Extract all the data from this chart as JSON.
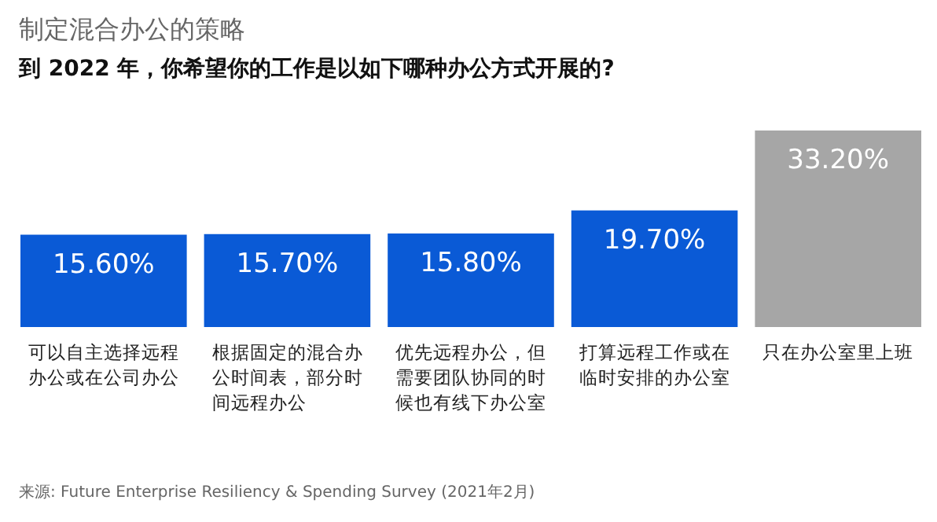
{
  "chart_data": {
    "type": "bar",
    "title": "制定混合办公的策略",
    "subtitle": "到 2022 年，你希望你的工作是以如下哪种办公方式开展的?",
    "categories": [
      "可以自主选择远程办公或在公司办公",
      "根据固定的混合办公时间表，部分时间远程办公",
      "优先远程办公，但需要团队协同的时候也有线下办公室",
      "打算远程工作或在临时安排的办公室",
      "只在办公室里上班"
    ],
    "values": [
      15.6,
      15.7,
      15.8,
      19.7,
      33.2
    ],
    "value_labels": [
      "15.60%",
      "15.70%",
      "15.80%",
      "19.70%",
      "33.20%"
    ],
    "colors": [
      "#0a5ad6",
      "#0a5ad6",
      "#0a5ad6",
      "#0a5ad6",
      "#a6a6a6"
    ],
    "annotations": [
      "来源: Future Enterprise Resiliency & Spending Survey (2021年2月)"
    ]
  }
}
